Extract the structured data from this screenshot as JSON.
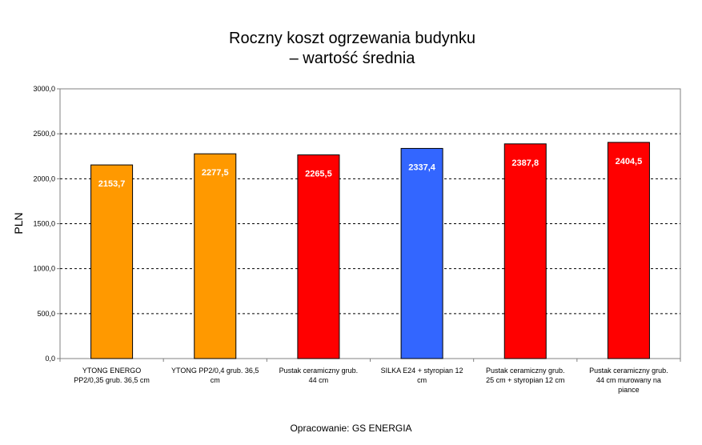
{
  "chart_data": {
    "type": "bar",
    "title_lines": [
      "Roczny koszt ogrzewania budynku",
      "– wartość średnia"
    ],
    "ylabel": "PLN",
    "xlabel": "",
    "ylim": [
      0,
      3000
    ],
    "yticks": [
      "0,0",
      "500,0",
      "1000,0",
      "1500,0",
      "2000,0",
      "2500,0",
      "3000,0"
    ],
    "grid": true,
    "legend": "none",
    "categories": [
      [
        "YTONG ENERGO",
        "PP2/0,35 grub. 36,5 cm"
      ],
      [
        "YTONG PP2/0,4 grub. 36,5",
        "cm"
      ],
      [
        "Pustak ceramiczny grub.",
        "44 cm"
      ],
      [
        "SILKA E24 + styropian 12",
        "cm"
      ],
      [
        "Pustak ceramiczny grub.",
        "25 cm + styropian 12 cm"
      ],
      [
        "Pustak ceramiczny grub.",
        "44 cm murowany na",
        "piance"
      ]
    ],
    "values": [
      2153.7,
      2277.5,
      2265.5,
      2337.4,
      2387.8,
      2404.5
    ],
    "value_labels": [
      "2153,7",
      "2277,5",
      "2265,5",
      "2337,4",
      "2387,8",
      "2404,5"
    ],
    "colors": [
      "#ff9900",
      "#ff9900",
      "#ff0000",
      "#3366ff",
      "#ff0000",
      "#ff0000"
    ]
  },
  "footer": "Opracowanie: GS ENERGIA"
}
